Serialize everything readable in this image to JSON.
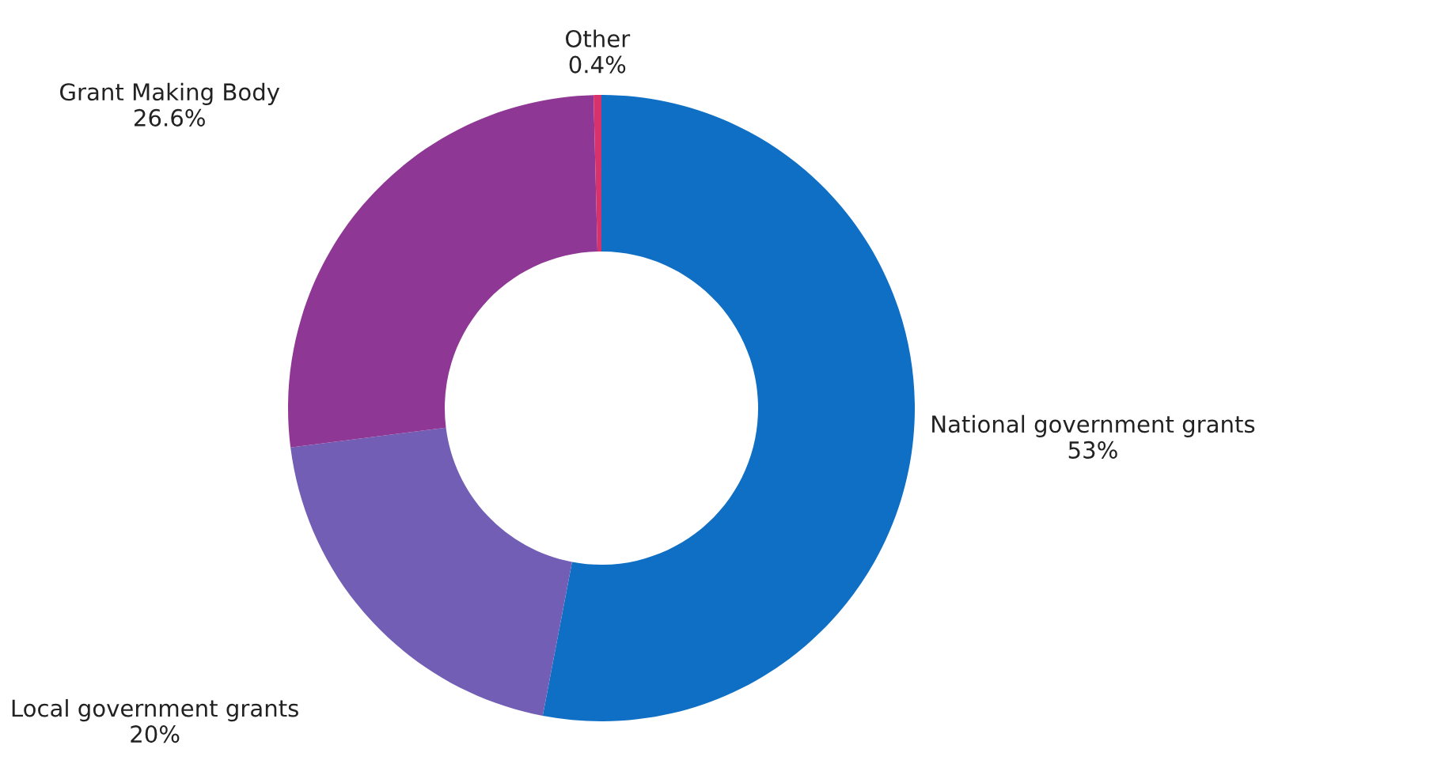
{
  "chart_data": {
    "type": "donut",
    "categories": [
      "National government grants",
      "Local government grants",
      "Grant Making Body",
      "Other"
    ],
    "values": [
      53,
      20,
      26.6,
      0.4
    ],
    "value_labels": [
      "53%",
      "20%",
      "26.6%",
      "0.4%"
    ],
    "colors": [
      "#0e6fc4",
      "#735eb5",
      "#8e3794",
      "#d6336c"
    ],
    "legend": false
  }
}
